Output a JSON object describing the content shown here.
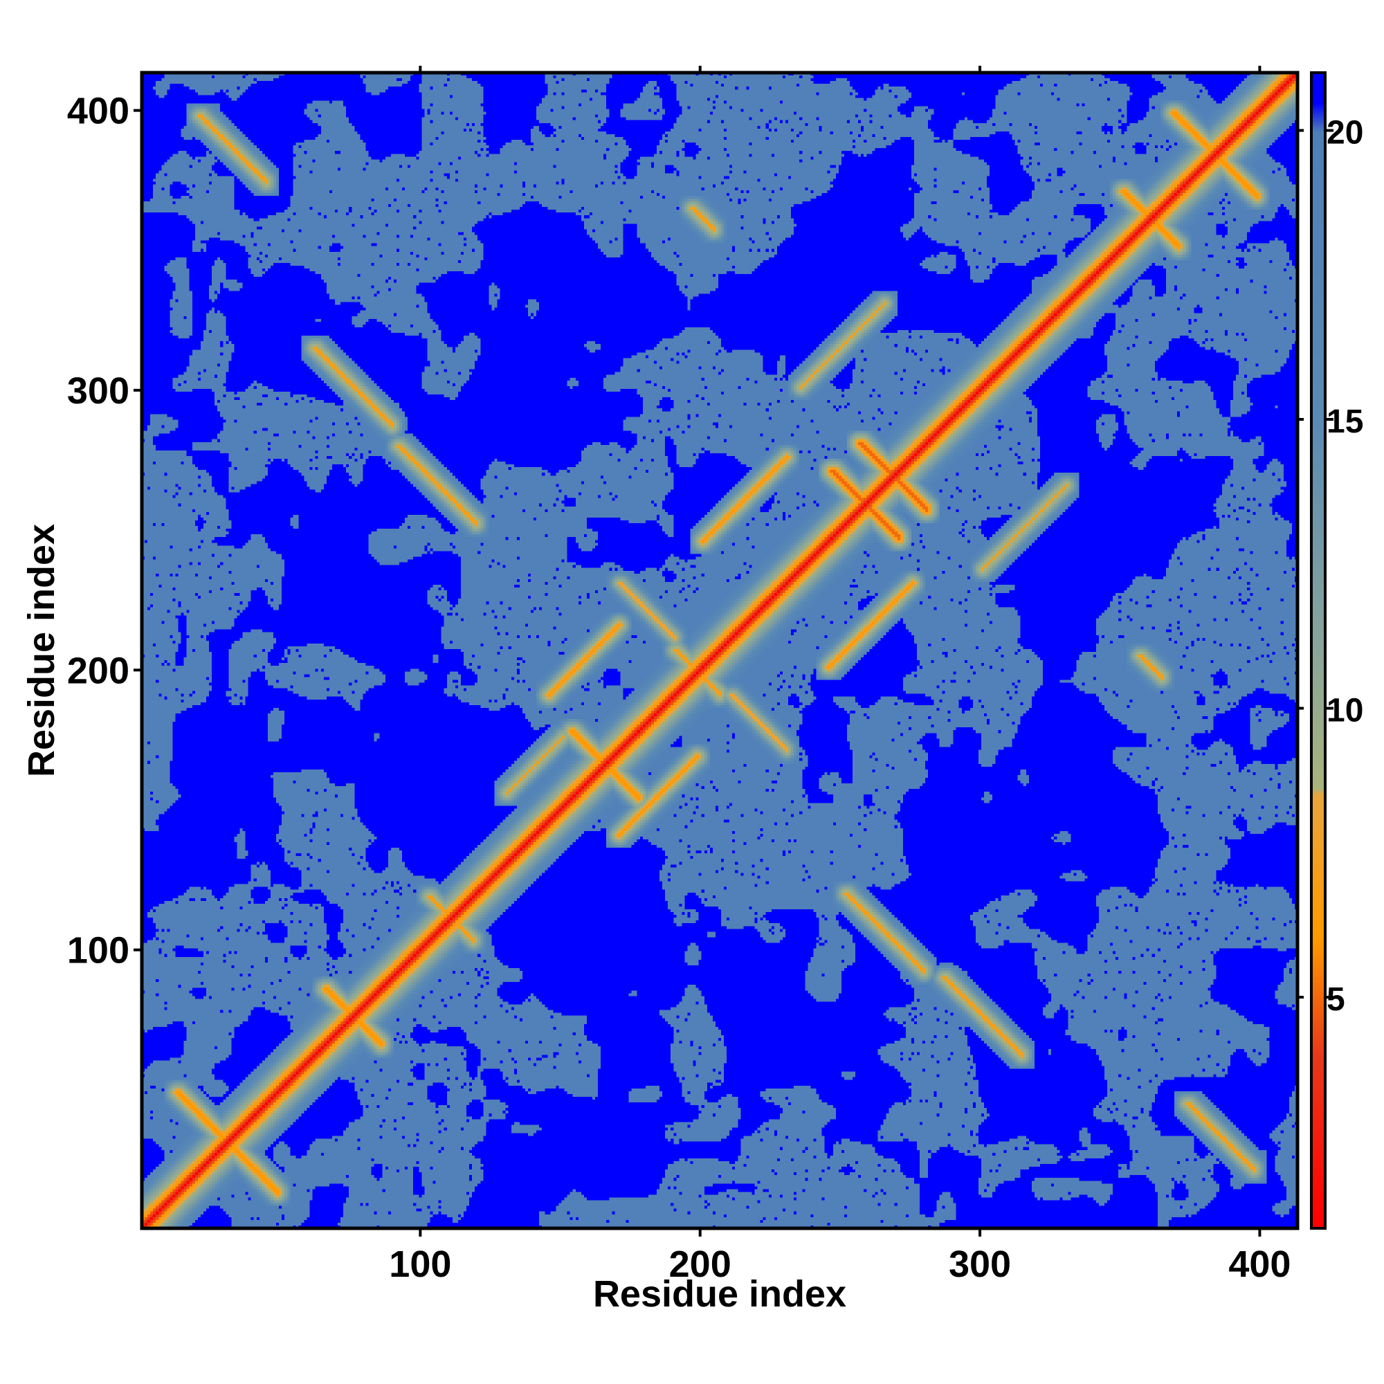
{
  "chart_data": {
    "type": "heatmap",
    "title": "",
    "xlabel": "Residue index",
    "ylabel": "Residue index",
    "n_residues": 413,
    "xlim": [
      1,
      413
    ],
    "ylim": [
      1,
      413
    ],
    "x_ticks": [
      100,
      200,
      300,
      400
    ],
    "y_ticks": [
      100,
      200,
      300,
      400
    ],
    "x_tick_labels": [
      "100",
      "200",
      "300",
      "400"
    ],
    "y_tick_labels": [
      "100",
      "200",
      "300",
      "400"
    ],
    "colorbar": {
      "range": [
        1,
        21
      ],
      "ticks": [
        5,
        10,
        15,
        20
      ],
      "tick_labels": [
        "5",
        "10",
        "15",
        "20"
      ],
      "colors": [
        {
          "value": 1,
          "color": "#ff0000"
        },
        {
          "value": 4,
          "color": "#e83a1a"
        },
        {
          "value": 6,
          "color": "#ff9900"
        },
        {
          "value": 8.5,
          "color": "#e8a53c"
        },
        {
          "value": 8.6,
          "color": "#a9b37d"
        },
        {
          "value": 11,
          "color": "#8aa69a"
        },
        {
          "value": 15,
          "color": "#5a8ab5"
        },
        {
          "value": 20,
          "color": "#4f7fb8"
        },
        {
          "value": 20.5,
          "color": "#0000ff"
        }
      ],
      "cap_color": "#0000ff"
    },
    "diagonal_value": 1,
    "background_value": 21,
    "contacts": [
      {
        "type": "antidiagonal",
        "center": [
          30,
          30
        ],
        "half_length": 18,
        "value": 6
      },
      {
        "type": "antidiagonal",
        "center": [
          75,
          75
        ],
        "half_length": 10,
        "value": 6
      },
      {
        "type": "antidiagonal",
        "center": [
          110,
          110
        ],
        "half_length": 8,
        "value": 7
      },
      {
        "type": "antidiagonal",
        "center": [
          165,
          165
        ],
        "half_length": 12,
        "value": 6
      },
      {
        "type": "antidiagonal",
        "center": [
          198,
          198
        ],
        "half_length": 8,
        "value": 7
      },
      {
        "type": "antidiagonal",
        "center": [
          258,
          258
        ],
        "half_length": 12,
        "value": 5
      },
      {
        "type": "antidiagonal",
        "center": [
          268,
          268
        ],
        "half_length": 12,
        "value": 5
      },
      {
        "type": "antidiagonal",
        "center": [
          360,
          360
        ],
        "half_length": 10,
        "value": 6
      },
      {
        "type": "antidiagonal",
        "center": [
          383,
          383
        ],
        "half_length": 15,
        "value": 6
      },
      {
        "type": "parallel",
        "start": [
          145,
          190
        ],
        "length": 25,
        "value": 6
      },
      {
        "type": "parallel",
        "start": [
          170,
          140
        ],
        "length": 28,
        "value": 6
      },
      {
        "type": "parallel",
        "start": [
          200,
          245
        ],
        "length": 30,
        "value": 6
      },
      {
        "type": "parallel",
        "start": [
          245,
          200
        ],
        "length": 30,
        "value": 6
      },
      {
        "type": "parallel",
        "start": [
          130,
          155
        ],
        "length": 20,
        "value": 7
      },
      {
        "type": "antidiagonal",
        "center": [
          105,
          265
        ],
        "half_length": 14,
        "value": 7
      },
      {
        "type": "antidiagonal",
        "center": [
          265,
          105
        ],
        "half_length": 14,
        "value": 7
      },
      {
        "type": "antidiagonal",
        "center": [
          75,
          300
        ],
        "half_length": 14,
        "value": 7
      },
      {
        "type": "antidiagonal",
        "center": [
          300,
          75
        ],
        "half_length": 14,
        "value": 7
      },
      {
        "type": "antidiagonal",
        "center": [
          32,
          385
        ],
        "half_length": 12,
        "value": 7
      },
      {
        "type": "antidiagonal",
        "center": [
          385,
          32
        ],
        "half_length": 12,
        "value": 7
      },
      {
        "type": "parallel",
        "start": [
          235,
          300
        ],
        "length": 30,
        "value": 7
      },
      {
        "type": "parallel",
        "start": [
          300,
          235
        ],
        "length": 30,
        "value": 7
      },
      {
        "type": "antidiagonal",
        "center": [
          360,
          200
        ],
        "half_length": 4,
        "value": 7
      },
      {
        "type": "antidiagonal",
        "center": [
          200,
          360
        ],
        "half_length": 4,
        "value": 7
      },
      {
        "type": "antidiagonal",
        "center": [
          180,
          220
        ],
        "half_length": 10,
        "value": 8
      },
      {
        "type": "antidiagonal",
        "center": [
          220,
          180
        ],
        "half_length": 10,
        "value": 8
      }
    ]
  }
}
